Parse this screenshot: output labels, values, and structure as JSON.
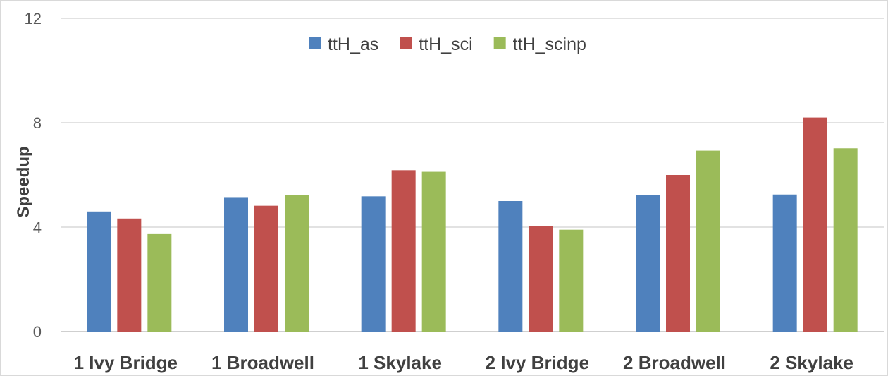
{
  "chart_data": {
    "type": "bar",
    "title": "",
    "xlabel": "",
    "ylabel": "Speedup",
    "ylim": [
      0,
      12
    ],
    "yticks": [
      0,
      4,
      8,
      12
    ],
    "grid": true,
    "legend_position": "top-center",
    "categories": [
      "1 Ivy Bridge",
      "1 Broadwell",
      "1 Skylake",
      "2 Ivy Bridge",
      "2 Broadwell",
      "2 Skylake"
    ],
    "series": [
      {
        "name": "ttH_as",
        "color": "#4f81bd",
        "values": [
          4.6,
          5.15,
          5.18,
          5.0,
          5.22,
          5.25
        ]
      },
      {
        "name": "ttH_sci",
        "color": "#c0504d",
        "values": [
          4.33,
          4.82,
          6.18,
          4.04,
          6.0,
          8.2
        ]
      },
      {
        "name": "ttH_scinp",
        "color": "#9bbb59",
        "values": [
          3.76,
          5.23,
          6.12,
          3.9,
          6.93,
          7.02
        ]
      }
    ]
  }
}
